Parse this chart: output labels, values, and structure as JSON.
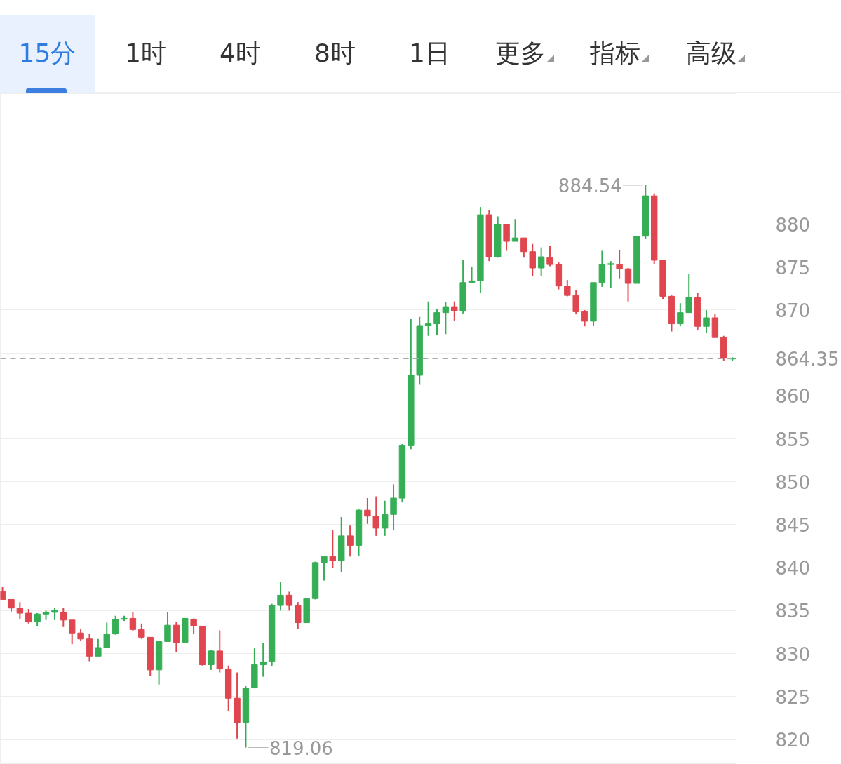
{
  "chart_data": {
    "type": "candlestick",
    "categories": [
      null,
      null,
      null,
      null,
      null,
      null,
      null,
      null,
      null,
      null,
      null,
      null,
      null,
      null,
      null,
      null,
      null,
      null,
      null,
      null,
      null,
      null,
      null,
      null,
      null,
      null,
      null,
      null,
      null,
      null,
      null,
      null,
      null,
      null,
      null,
      null,
      null,
      null,
      null,
      null,
      null,
      null,
      null,
      null,
      null,
      null,
      null,
      null,
      null,
      null,
      null,
      null,
      null,
      null,
      null,
      null,
      null,
      null,
      null,
      null,
      null,
      null,
      null,
      null,
      null,
      null,
      null,
      null,
      null,
      null,
      null,
      null,
      null,
      null,
      null,
      null,
      null,
      null,
      null,
      null,
      null,
      null,
      null,
      null,
      null
    ],
    "ohlc": [
      [
        837.2,
        837.8,
        836.3,
        836.3
      ],
      [
        836.3,
        836.3,
        834.9,
        835.3
      ],
      [
        835.3,
        836.0,
        834.0,
        834.7
      ],
      [
        834.7,
        835.2,
        833.5,
        833.7
      ],
      [
        833.7,
        834.7,
        833.2,
        834.6
      ],
      [
        834.6,
        835.0,
        833.9,
        834.8
      ],
      [
        834.8,
        835.3,
        833.9,
        835.0
      ],
      [
        834.8,
        835.3,
        833.1,
        833.9
      ],
      [
        833.9,
        833.9,
        831.1,
        832.4
      ],
      [
        832.4,
        832.9,
        831.5,
        831.7
      ],
      [
        831.7,
        832.3,
        829.1,
        829.7
      ],
      [
        829.7,
        831.7,
        829.7,
        830.7
      ],
      [
        830.7,
        833.6,
        830.7,
        832.3
      ],
      [
        832.3,
        834.4,
        832.2,
        834.0
      ],
      [
        834.0,
        834.4,
        833.8,
        834.1
      ],
      [
        834.1,
        834.8,
        832.6,
        832.8
      ],
      [
        832.8,
        833.5,
        831.7,
        831.9
      ],
      [
        831.9,
        831.9,
        827.4,
        828.1
      ],
      [
        828.1,
        831.4,
        826.4,
        831.4
      ],
      [
        831.4,
        834.8,
        831.4,
        833.3
      ],
      [
        833.3,
        833.7,
        830.2,
        831.3
      ],
      [
        831.3,
        834.1,
        831.3,
        834.1
      ],
      [
        834.0,
        834.1,
        832.3,
        833.2
      ],
      [
        833.2,
        833.2,
        828.6,
        828.7
      ],
      [
        828.7,
        830.4,
        828.1,
        830.3
      ],
      [
        830.3,
        832.7,
        827.8,
        828.2
      ],
      [
        828.2,
        828.6,
        823.3,
        824.8
      ],
      [
        824.8,
        827.8,
        820.1,
        822.0
      ],
      [
        822.0,
        826.2,
        819.06,
        826.0
      ],
      [
        826.0,
        830.6,
        826.0,
        828.7
      ],
      [
        828.7,
        831.2,
        827.3,
        829.0
      ],
      [
        829.1,
        835.8,
        828.5,
        835.6
      ],
      [
        835.6,
        838.3,
        835.0,
        836.8
      ],
      [
        836.8,
        837.2,
        835.0,
        835.6
      ],
      [
        835.6,
        836.0,
        832.9,
        833.6
      ],
      [
        833.6,
        836.5,
        833.6,
        836.4
      ],
      [
        836.4,
        840.7,
        836.3,
        840.6
      ],
      [
        840.6,
        841.4,
        838.5,
        841.3
      ],
      [
        841.3,
        844.4,
        840.0,
        840.8
      ],
      [
        840.8,
        845.9,
        839.5,
        843.7
      ],
      [
        843.7,
        844.9,
        841.3,
        842.6
      ],
      [
        842.6,
        846.8,
        841.4,
        846.7
      ],
      [
        846.7,
        848.1,
        845.1,
        846.0
      ],
      [
        846.0,
        848.3,
        843.7,
        844.6
      ],
      [
        844.6,
        847.8,
        843.7,
        846.2
      ],
      [
        846.2,
        849.7,
        844.4,
        848.1
      ],
      [
        848.1,
        854.4,
        847.6,
        854.2
      ],
      [
        854.2,
        869.0,
        853.8,
        862.4
      ],
      [
        862.4,
        869.2,
        861.3,
        868.2
      ],
      [
        868.2,
        871.0,
        867.0,
        868.4
      ],
      [
        868.4,
        870.1,
        867.1,
        869.7
      ],
      [
        869.7,
        870.9,
        867.2,
        870.4
      ],
      [
        870.4,
        871.0,
        868.7,
        869.9
      ],
      [
        869.9,
        875.8,
        869.6,
        873.2
      ],
      [
        873.2,
        875.0,
        873.1,
        873.4
      ],
      [
        873.4,
        882.0,
        872.0,
        881.1
      ],
      [
        881.1,
        881.6,
        875.7,
        876.2
      ],
      [
        876.2,
        880.9,
        876.1,
        880.0
      ],
      [
        880.0,
        880.0,
        876.9,
        878.0
      ],
      [
        878.0,
        880.6,
        878.0,
        878.4
      ],
      [
        878.4,
        878.4,
        876.1,
        876.8
      ],
      [
        876.8,
        877.7,
        874.0,
        874.9
      ],
      [
        874.9,
        877.3,
        874.0,
        876.2
      ],
      [
        876.1,
        877.5,
        875.1,
        875.3
      ],
      [
        875.3,
        875.6,
        872.4,
        872.8
      ],
      [
        872.8,
        873.5,
        871.6,
        871.7
      ],
      [
        871.7,
        872.3,
        869.5,
        869.8
      ],
      [
        869.8,
        870.0,
        868.1,
        868.7
      ],
      [
        868.7,
        873.2,
        868.2,
        873.2
      ],
      [
        873.2,
        876.9,
        872.7,
        875.3
      ],
      [
        875.3,
        875.7,
        872.6,
        875.4
      ],
      [
        875.3,
        877.0,
        873.7,
        874.8
      ],
      [
        874.8,
        874.9,
        871.0,
        873.1
      ],
      [
        873.1,
        878.6,
        873.1,
        878.6
      ],
      [
        878.6,
        884.54,
        878.3,
        883.3
      ],
      [
        883.3,
        883.6,
        875.3,
        875.8
      ],
      [
        875.8,
        875.8,
        871.3,
        871.6
      ],
      [
        871.6,
        871.7,
        867.5,
        868.4
      ],
      [
        868.4,
        870.8,
        868.1,
        869.7
      ],
      [
        869.7,
        874.2,
        869.7,
        871.5
      ],
      [
        871.5,
        872.0,
        867.7,
        868.1
      ],
      [
        868.1,
        870.0,
        867.3,
        869.1
      ],
      [
        869.1,
        869.5,
        866.8,
        866.8
      ],
      [
        866.8,
        867.0,
        864.1,
        864.4
      ],
      [
        864.3,
        864.5,
        864.1,
        864.35
      ]
    ],
    "colors": [
      "#e0464f",
      "#e0464f",
      "#e0464f",
      "#e0464f",
      "#35ae55",
      "#35ae55",
      "#35ae55",
      "#e0464f",
      "#e0464f",
      "#e0464f",
      "#e0464f",
      "#35ae55",
      "#35ae55",
      "#35ae55",
      "#35ae55",
      "#e0464f",
      "#e0464f",
      "#e0464f",
      "#35ae55",
      "#35ae55",
      "#e0464f",
      "#35ae55",
      "#e0464f",
      "#e0464f",
      "#35ae55",
      "#e0464f",
      "#e0464f",
      "#e0464f",
      "#35ae55",
      "#35ae55",
      "#35ae55",
      "#35ae55",
      "#35ae55",
      "#e0464f",
      "#e0464f",
      "#35ae55",
      "#35ae55",
      "#35ae55",
      "#e0464f",
      "#35ae55",
      "#e0464f",
      "#35ae55",
      "#e0464f",
      "#e0464f",
      "#35ae55",
      "#35ae55",
      "#35ae55",
      "#35ae55",
      "#35ae55",
      "#35ae55",
      "#35ae55",
      "#35ae55",
      "#e0464f",
      "#35ae55",
      "#35ae55",
      "#35ae55",
      "#e0464f",
      "#35ae55",
      "#e0464f",
      "#35ae55",
      "#e0464f",
      "#e0464f",
      "#35ae55",
      "#e0464f",
      "#e0464f",
      "#e0464f",
      "#e0464f",
      "#e0464f",
      "#35ae55",
      "#35ae55",
      "#35ae55",
      "#e0464f",
      "#e0464f",
      "#35ae55",
      "#35ae55",
      "#e0464f",
      "#e0464f",
      "#e0464f",
      "#35ae55",
      "#35ae55",
      "#e0464f",
      "#35ae55",
      "#e0464f",
      "#e0464f",
      "#35ae55"
    ],
    "ylim": [
      817.1,
      895.2
    ],
    "yticks": [
      820,
      825,
      830,
      835,
      840,
      845,
      850,
      855,
      860,
      {
        "value": 865,
        "label": null
      },
      870,
      875,
      880
    ],
    "grid": "y",
    "ref_lines": [
      {
        "axis": "y",
        "value": 864.35,
        "label": "864.35",
        "color": "#aaaaaa",
        "line_style": "dashed"
      }
    ],
    "annotations": [
      "15分",
      "1时",
      "4时",
      "8时",
      "1日",
      "更多",
      "指标",
      "高级",
      "884.54",
      "819.06"
    ]
  }
}
